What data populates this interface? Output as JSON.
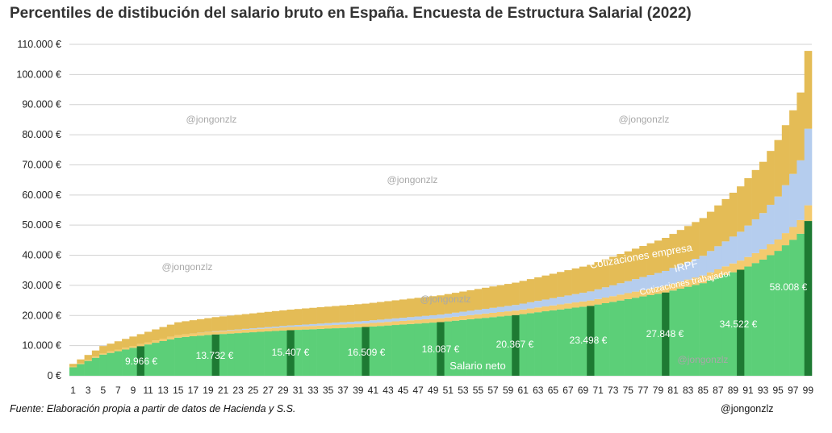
{
  "chart_data": {
    "type": "bar",
    "stacked": true,
    "title": "Percentiles de distibución del salario bruto en España. Encuesta de Estructura Salarial (2022)",
    "source": "Fuente: Elaboración propia a partir de datos de Hacienda y S.S.",
    "author": "@jongonzlz",
    "watermarks": [
      "@jongonzlz",
      "@jongonzlz",
      "@jongonzlz",
      "@jongonzlz",
      "@jongonzlz",
      "@jongonzlz"
    ],
    "y_ticks": [
      "0 €",
      "10.000 €",
      "20.000 €",
      "30.000 €",
      "40.000 €",
      "50.000 €",
      "60.000 €",
      "70.000 €",
      "80.000 €",
      "90.000 €",
      "100.000 €",
      "110.000 €"
    ],
    "ylim": [
      0,
      110000
    ],
    "x_tick_labels": [
      "1",
      "3",
      "5",
      "7",
      "9",
      "11",
      "13",
      "15",
      "17",
      "19",
      "21",
      "23",
      "25",
      "27",
      "29",
      "31",
      "33",
      "35",
      "37",
      "39",
      "41",
      "43",
      "45",
      "47",
      "49",
      "51",
      "53",
      "55",
      "57",
      "59",
      "61",
      "63",
      "65",
      "67",
      "69",
      "71",
      "73",
      "75",
      "77",
      "79",
      "81",
      "83",
      "85",
      "87",
      "89",
      "91",
      "93",
      "95",
      "97",
      "99"
    ],
    "percentiles": 99,
    "series_labels": {
      "neto": "Salario neto",
      "trabajador": "Cotizaciones trabajador",
      "irpf": "IRPF",
      "empresa": "Cotizaciones empresa"
    },
    "colors": {
      "neto": "#5ccf78",
      "neto_highlight": "#1e7a33",
      "trabajador": "#f3ca6e",
      "irpf": "#b5cdee",
      "empresa": "#e4bc56",
      "grid": "#d2d2d2"
    },
    "bruto_anchors": {
      "percentile": [
        1,
        5,
        10,
        15,
        20,
        30,
        40,
        50,
        60,
        70,
        80,
        85,
        90,
        93,
        95,
        97,
        98,
        99
      ],
      "value": [
        3000,
        7500,
        10500,
        13500,
        14800,
        16700,
        18200,
        20300,
        23500,
        28000,
        34800,
        39800,
        47800,
        54000,
        59500,
        67000,
        71500,
        82000
      ]
    },
    "empresa_factor": 0.315,
    "labeled_percentiles": [
      {
        "p": 10,
        "neto": 9966,
        "label": "9.966 €"
      },
      {
        "p": 20,
        "neto": 13732,
        "label": "13.732 €"
      },
      {
        "p": 30,
        "neto": 15407,
        "label": "15.407 €"
      },
      {
        "p": 40,
        "neto": 16509,
        "label": "16.509 €"
      },
      {
        "p": 50,
        "neto": 18087,
        "label": "18.087 €"
      },
      {
        "p": 60,
        "neto": 20367,
        "label": "20.367 €"
      },
      {
        "p": 70,
        "neto": 23498,
        "label": "23.498 €"
      },
      {
        "p": 80,
        "neto": 27848,
        "label": "27.848 €"
      },
      {
        "p": 90,
        "neto": 34522,
        "label": "34.522 €"
      },
      {
        "p": 99,
        "neto": 58008,
        "label": "58.008 €"
      }
    ]
  }
}
